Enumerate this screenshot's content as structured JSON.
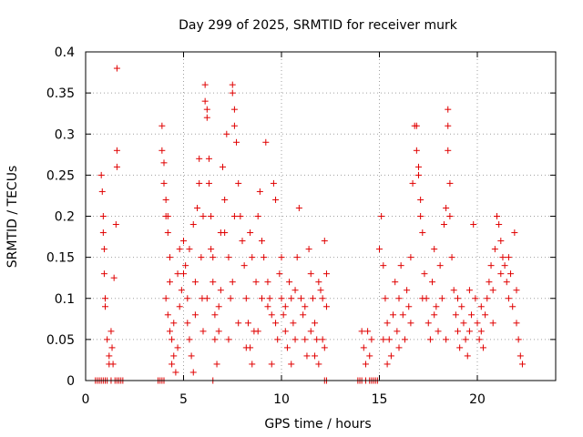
{
  "chart_data": {
    "type": "scatter",
    "title": "Day 299 of 2025, SRMTID for receiver murk",
    "xlabel": "GPS time / hours",
    "ylabel": "SRMTID / TECUs",
    "xlim": [
      0,
      24
    ],
    "ylim": [
      0,
      0.4
    ],
    "x_ticks": [
      0,
      5,
      10,
      15,
      20
    ],
    "x_tick_labels": [
      "0",
      "5",
      "10",
      "15",
      "20"
    ],
    "y_ticks": [
      0,
      0.05,
      0.1,
      0.15,
      0.2,
      0.25,
      0.3,
      0.35,
      0.4
    ],
    "y_tick_labels": [
      "0",
      "0.05",
      "0.1",
      "0.15",
      "0.2",
      "0.25",
      "0.3",
      "0.35",
      "0.4"
    ],
    "grid": true,
    "legend": "none",
    "marker": "plus",
    "series": [
      {
        "name": "SRMTID",
        "color": "#e00000",
        "points": [
          [
            0.5,
            0
          ],
          [
            0.6,
            0
          ],
          [
            0.7,
            0
          ],
          [
            0.8,
            0
          ],
          [
            0.9,
            0
          ],
          [
            1.0,
            0
          ],
          [
            1.1,
            0
          ],
          [
            1.3,
            0
          ],
          [
            1.5,
            0
          ],
          [
            1.6,
            0
          ],
          [
            1.7,
            0
          ],
          [
            1.8,
            0
          ],
          [
            1.9,
            0
          ],
          [
            0.8,
            0.25
          ],
          [
            0.85,
            0.23
          ],
          [
            0.9,
            0.2
          ],
          [
            0.9,
            0.18
          ],
          [
            0.95,
            0.16
          ],
          [
            0.95,
            0.13
          ],
          [
            1.0,
            0.1
          ],
          [
            1.0,
            0.09
          ],
          [
            1.1,
            0.05
          ],
          [
            1.2,
            0.03
          ],
          [
            1.2,
            0.02
          ],
          [
            1.3,
            0.06
          ],
          [
            1.35,
            0.04
          ],
          [
            1.4,
            0.02
          ],
          [
            1.45,
            0.125
          ],
          [
            1.55,
            0.19
          ],
          [
            1.6,
            0.26
          ],
          [
            1.6,
            0.28
          ],
          [
            1.6,
            0.38
          ],
          [
            3.7,
            0
          ],
          [
            3.8,
            0
          ],
          [
            3.9,
            0
          ],
          [
            4.0,
            0
          ],
          [
            6.5,
            0
          ],
          [
            12.2,
            0
          ],
          [
            12.3,
            0
          ],
          [
            13.9,
            0
          ],
          [
            14.0,
            0
          ],
          [
            14.1,
            0
          ],
          [
            14.3,
            0
          ],
          [
            14.5,
            0
          ],
          [
            14.6,
            0
          ],
          [
            14.7,
            0
          ],
          [
            14.8,
            0
          ],
          [
            14.9,
            0
          ],
          [
            3.9,
            0.31
          ],
          [
            3.9,
            0.28
          ],
          [
            4.0,
            0.265
          ],
          [
            4.0,
            0.24
          ],
          [
            4.1,
            0.22
          ],
          [
            4.1,
            0.2
          ],
          [
            4.2,
            0.2
          ],
          [
            4.2,
            0.18
          ],
          [
            4.3,
            0.15
          ],
          [
            4.3,
            0.12
          ],
          [
            4.1,
            0.1
          ],
          [
            4.2,
            0.08
          ],
          [
            4.3,
            0.06
          ],
          [
            4.4,
            0.05
          ],
          [
            4.5,
            0.03
          ],
          [
            4.4,
            0.02
          ],
          [
            4.6,
            0.01
          ],
          [
            4.7,
            0.04
          ],
          [
            4.8,
            0.09
          ],
          [
            4.9,
            0.11
          ],
          [
            5.0,
            0.17
          ],
          [
            5.0,
            0.13
          ],
          [
            5.1,
            0.14
          ],
          [
            5.2,
            0.07
          ],
          [
            5.3,
            0.05
          ],
          [
            5.4,
            0.03
          ],
          [
            5.5,
            0.01
          ],
          [
            5.6,
            0.12
          ],
          [
            5.7,
            0.21
          ],
          [
            5.8,
            0.27
          ],
          [
            5.8,
            0.24
          ],
          [
            5.9,
            0.15
          ],
          [
            5.95,
            0.1
          ],
          [
            6.0,
            0.2
          ],
          [
            6.1,
            0.34
          ],
          [
            6.1,
            0.36
          ],
          [
            6.2,
            0.33
          ],
          [
            6.2,
            0.32
          ],
          [
            6.3,
            0.27
          ],
          [
            6.3,
            0.24
          ],
          [
            6.4,
            0.2
          ],
          [
            6.4,
            0.16
          ],
          [
            6.5,
            0.12
          ],
          [
            6.6,
            0.08
          ],
          [
            6.6,
            0.05
          ],
          [
            6.7,
            0.02
          ],
          [
            6.8,
            0.06
          ],
          [
            6.9,
            0.11
          ],
          [
            7.0,
            0.26
          ],
          [
            7.1,
            0.22
          ],
          [
            7.1,
            0.18
          ],
          [
            7.2,
            0.3
          ],
          [
            7.3,
            0.15
          ],
          [
            7.4,
            0.1
          ],
          [
            7.5,
            0.36
          ],
          [
            7.5,
            0.35
          ],
          [
            7.6,
            0.33
          ],
          [
            7.6,
            0.31
          ],
          [
            7.7,
            0.29
          ],
          [
            7.8,
            0.24
          ],
          [
            7.9,
            0.2
          ],
          [
            8.0,
            0.17
          ],
          [
            8.1,
            0.14
          ],
          [
            8.2,
            0.1
          ],
          [
            8.3,
            0.07
          ],
          [
            8.4,
            0.04
          ],
          [
            8.5,
            0.02
          ],
          [
            8.6,
            0.06
          ],
          [
            8.7,
            0.12
          ],
          [
            8.8,
            0.2
          ],
          [
            8.9,
            0.23
          ],
          [
            9.0,
            0.17
          ],
          [
            9.1,
            0.15
          ],
          [
            9.2,
            0.29
          ],
          [
            9.3,
            0.12
          ],
          [
            9.4,
            0.1
          ],
          [
            9.5,
            0.08
          ],
          [
            9.6,
            0.24
          ],
          [
            9.7,
            0.22
          ],
          [
            9.8,
            0.05
          ],
          [
            9.9,
            0.13
          ],
          [
            10.0,
            0.1
          ],
          [
            10.1,
            0.08
          ],
          [
            10.2,
            0.06
          ],
          [
            10.3,
            0.04
          ],
          [
            10.4,
            0.12
          ],
          [
            10.5,
            0.1
          ],
          [
            10.6,
            0.07
          ],
          [
            10.7,
            0.05
          ],
          [
            10.8,
            0.15
          ],
          [
            10.9,
            0.21
          ],
          [
            11.0,
            0.1
          ],
          [
            11.1,
            0.08
          ],
          [
            11.2,
            0.05
          ],
          [
            11.3,
            0.03
          ],
          [
            11.4,
            0.16
          ],
          [
            11.5,
            0.13
          ],
          [
            11.6,
            0.1
          ],
          [
            11.7,
            0.07
          ],
          [
            11.8,
            0.05
          ],
          [
            11.9,
            0.12
          ],
          [
            12.0,
            0.11
          ],
          [
            12.1,
            0.1
          ],
          [
            12.2,
            0.04
          ],
          [
            12.2,
            0.17
          ],
          [
            12.3,
            0.13
          ],
          [
            12.3,
            0.09
          ],
          [
            12.1,
            0.05
          ],
          [
            11.9,
            0.02
          ],
          [
            11.5,
            0.06
          ],
          [
            10.5,
            0.02
          ],
          [
            9.5,
            0.02
          ],
          [
            8.5,
            0.15
          ],
          [
            7.5,
            0.12
          ],
          [
            6.5,
            0.15
          ],
          [
            5.5,
            0.19
          ],
          [
            4.8,
            0.16
          ],
          [
            4.7,
            0.13
          ],
          [
            5.2,
            0.1
          ],
          [
            5.6,
            0.08
          ],
          [
            6.0,
            0.06
          ],
          [
            6.8,
            0.09
          ],
          [
            7.3,
            0.05
          ],
          [
            7.8,
            0.07
          ],
          [
            8.2,
            0.04
          ],
          [
            8.8,
            0.06
          ],
          [
            9.3,
            0.09
          ],
          [
            9.7,
            0.07
          ],
          [
            10.2,
            0.09
          ],
          [
            10.7,
            0.11
          ],
          [
            11.2,
            0.09
          ],
          [
            11.7,
            0.03
          ],
          [
            4.5,
            0.07
          ],
          [
            5.3,
            0.16
          ],
          [
            6.2,
            0.1
          ],
          [
            6.9,
            0.18
          ],
          [
            7.6,
            0.2
          ],
          [
            8.4,
            0.18
          ],
          [
            9.0,
            0.1
          ],
          [
            10.0,
            0.15
          ],
          [
            14.1,
            0.06
          ],
          [
            14.2,
            0.04
          ],
          [
            14.3,
            0.02
          ],
          [
            14.4,
            0.06
          ],
          [
            14.5,
            0.03
          ],
          [
            14.6,
            0.05
          ],
          [
            15.0,
            0.16
          ],
          [
            15.1,
            0.2
          ],
          [
            15.2,
            0.14
          ],
          [
            15.3,
            0.1
          ],
          [
            15.4,
            0.07
          ],
          [
            15.5,
            0.05
          ],
          [
            15.6,
            0.03
          ],
          [
            15.7,
            0.08
          ],
          [
            15.8,
            0.12
          ],
          [
            15.9,
            0.06
          ],
          [
            16.0,
            0.1
          ],
          [
            16.1,
            0.14
          ],
          [
            16.2,
            0.08
          ],
          [
            16.3,
            0.05
          ],
          [
            16.4,
            0.11
          ],
          [
            16.5,
            0.09
          ],
          [
            16.6,
            0.15
          ],
          [
            16.7,
            0.24
          ],
          [
            16.8,
            0.31
          ],
          [
            16.9,
            0.31
          ],
          [
            16.9,
            0.28
          ],
          [
            17.0,
            0.26
          ],
          [
            17.0,
            0.25
          ],
          [
            17.1,
            0.22
          ],
          [
            17.1,
            0.2
          ],
          [
            17.2,
            0.18
          ],
          [
            17.3,
            0.13
          ],
          [
            17.4,
            0.1
          ],
          [
            17.5,
            0.07
          ],
          [
            17.6,
            0.05
          ],
          [
            17.7,
            0.12
          ],
          [
            17.8,
            0.16
          ],
          [
            17.9,
            0.09
          ],
          [
            18.0,
            0.06
          ],
          [
            18.1,
            0.14
          ],
          [
            18.2,
            0.1
          ],
          [
            18.3,
            0.19
          ],
          [
            18.4,
            0.21
          ],
          [
            18.5,
            0.33
          ],
          [
            18.5,
            0.31
          ],
          [
            18.5,
            0.28
          ],
          [
            18.6,
            0.24
          ],
          [
            18.6,
            0.2
          ],
          [
            18.7,
            0.15
          ],
          [
            18.8,
            0.11
          ],
          [
            18.9,
            0.08
          ],
          [
            19.0,
            0.06
          ],
          [
            19.1,
            0.04
          ],
          [
            19.2,
            0.09
          ],
          [
            19.3,
            0.07
          ],
          [
            19.4,
            0.05
          ],
          [
            19.5,
            0.03
          ],
          [
            19.6,
            0.06
          ],
          [
            19.7,
            0.08
          ],
          [
            19.8,
            0.19
          ],
          [
            19.9,
            0.1
          ],
          [
            20.0,
            0.07
          ],
          [
            20.1,
            0.05
          ],
          [
            20.2,
            0.06
          ],
          [
            20.3,
            0.04
          ],
          [
            20.4,
            0.08
          ],
          [
            20.5,
            0.1
          ],
          [
            20.6,
            0.12
          ],
          [
            20.7,
            0.14
          ],
          [
            20.8,
            0.11
          ],
          [
            20.9,
            0.16
          ],
          [
            21.0,
            0.2
          ],
          [
            21.1,
            0.19
          ],
          [
            21.2,
            0.17
          ],
          [
            21.3,
            0.15
          ],
          [
            21.4,
            0.14
          ],
          [
            21.5,
            0.12
          ],
          [
            21.6,
            0.1
          ],
          [
            21.7,
            0.13
          ],
          [
            21.8,
            0.09
          ],
          [
            21.9,
            0.18
          ],
          [
            22.0,
            0.07
          ],
          [
            22.1,
            0.05
          ],
          [
            22.2,
            0.03
          ],
          [
            22.3,
            0.02
          ],
          [
            22.0,
            0.11
          ],
          [
            21.6,
            0.15
          ],
          [
            21.2,
            0.13
          ],
          [
            20.8,
            0.07
          ],
          [
            20.2,
            0.09
          ],
          [
            19.6,
            0.11
          ],
          [
            19.0,
            0.1
          ],
          [
            18.4,
            0.05
          ],
          [
            17.8,
            0.08
          ],
          [
            17.2,
            0.1
          ],
          [
            16.6,
            0.07
          ],
          [
            16.0,
            0.04
          ],
          [
            15.4,
            0.02
          ],
          [
            15.2,
            0.05
          ]
        ]
      }
    ]
  }
}
